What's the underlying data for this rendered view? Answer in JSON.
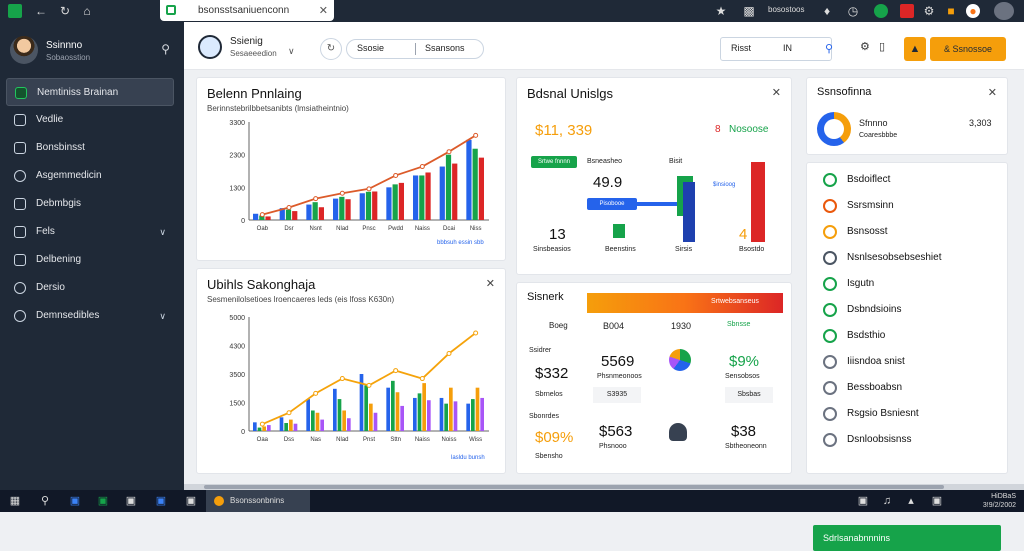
{
  "browser": {
    "url": "bsonsstsaniuenconn",
    "right_text": "bosostoos"
  },
  "sidebar": {
    "profile_name": "Ssinnno",
    "profile_sub": "Sobaosstion",
    "items": [
      {
        "label": "Nemtiniss Brainan",
        "active": true
      },
      {
        "label": "Vedlie"
      },
      {
        "label": "Bonsbinsst"
      },
      {
        "label": "Asgemmedicin"
      },
      {
        "label": "Debmbgis"
      },
      {
        "label": "Fels",
        "chevron": true
      },
      {
        "label": "Delbening"
      },
      {
        "label": "Dersio"
      },
      {
        "label": "Demnsedibles",
        "chevron": true
      }
    ]
  },
  "header": {
    "title": "Ssienig",
    "subtitle": "Sesaeeedion",
    "search_a": "Ssosie",
    "search_b": "Ssansons",
    "filter_label": "Risst",
    "filter_extra": "IN",
    "cta": "& Ssnossoe"
  },
  "card1": {
    "title": "Belenn Pnnlaing",
    "subtitle": "Berinnstebrilbbetsanibts (lmsiatheintnio)",
    "legend": "bbbsuh essin sbb",
    "chart_data": {
      "type": "bar",
      "categories": [
        "Oab",
        "Dsr",
        "Nsnt",
        "Nlad",
        "Pnsc",
        "Pwdd",
        "Naiss",
        "Dcai",
        "Niss"
      ],
      "series": [
        {
          "color": "#2563eb",
          "values": [
            210,
            400,
            520,
            720,
            900,
            1100,
            1500,
            1800,
            2700
          ]
        },
        {
          "color": "#16a34a",
          "values": [
            150,
            350,
            600,
            780,
            950,
            1200,
            1500,
            2200,
            2400
          ]
        },
        {
          "color": "#dc2626",
          "values": [
            120,
            300,
            430,
            700,
            960,
            1250,
            1600,
            1900,
            2100
          ]
        }
      ],
      "line": [
        180,
        420,
        720,
        900,
        1050,
        1500,
        1800,
        2300,
        2850
      ],
      "yticks": [
        "0",
        "1300",
        "2300",
        "3300"
      ],
      "ylim": [
        0,
        3300
      ]
    }
  },
  "card2": {
    "title": "Ubihls Sakonghaja",
    "subtitle": "Sesmenilolsetioes lroencaeres leds (eis lfoss K630n)",
    "legend": "lasldu bunsh",
    "chart_data": {
      "type": "bar",
      "categories": [
        "Oaa",
        "Dss",
        "Nas",
        "Nlad",
        "Pnst",
        "Sttn",
        "Naiss",
        "Noiss",
        "Wiss"
      ],
      "series": [
        {
          "color": "#2563eb",
          "values": [
            380,
            600,
            1400,
            1850,
            2500,
            1900,
            1450,
            1450,
            1200
          ]
        },
        {
          "color": "#16a34a",
          "values": [
            150,
            350,
            900,
            1400,
            2000,
            2200,
            1650,
            1200,
            1400
          ]
        },
        {
          "color": "#f59e0b",
          "values": [
            200,
            500,
            800,
            900,
            1200,
            1700,
            2100,
            1900,
            1900
          ]
        },
        {
          "color": "#a855f7",
          "values": [
            260,
            320,
            500,
            560,
            800,
            1100,
            1350,
            1300,
            1450
          ]
        }
      ],
      "line": [
        300,
        800,
        1650,
        2300,
        2000,
        2650,
        2300,
        3400,
        4300
      ],
      "yticks": [
        "0",
        "1500",
        "3500",
        "4300",
        "5000"
      ],
      "ylim": [
        0,
        5000
      ]
    }
  },
  "card3": {
    "title": "Bdsnal Unislgs",
    "big_left": "$11, 339",
    "big_right_prefix": "8",
    "big_right": "Nosoose",
    "badge": "Srtwe fnnnn",
    "sub_label_a": "Bsneasheo",
    "sub_label_b": "Bisit",
    "value_mid": "49.9",
    "pill_a": "Pisobooe",
    "pill_b": "$insioog",
    "count_left": "13",
    "count_right": "4",
    "foot_a": "Sinsbeasios",
    "foot_b": "Beenstins",
    "foot_c": "Sirsis",
    "foot_d": "Bsostdo"
  },
  "card4": {
    "title": "Sisnerk",
    "header_bar": "Srtwebsanseus",
    "cols": [
      "Boeg",
      "B004",
      "1930",
      "Sbnsse"
    ],
    "r1_label": "Ssidrer",
    "r1_left": "$332",
    "r1_mid": "5569",
    "r1_mid_sub": "Phsnmeonoos",
    "r1_right": "$9%",
    "r1_right_sub": "Sensobsos",
    "r1_left_sub": "Sbrnelos",
    "r2_label": "Sbonrdes",
    "r2_left": "$09%",
    "r2_mid": "$563",
    "r2_mid_sub": "Phsnooo",
    "r2_right": "$38",
    "r2_right_sub": "Sbtheoneonn",
    "r2_left_sub": "Sbensho",
    "row_pills": [
      "S3935",
      "Sbsbas"
    ]
  },
  "card5": {
    "title": "Ssnsofinna",
    "item": "Sfnnno",
    "item_sub": "Coaresbbbe",
    "value": "3,303"
  },
  "checklist": {
    "items": [
      {
        "label": "Bsdoiflect",
        "color": "#16a34a"
      },
      {
        "label": "Ssrsmsinn",
        "color": "#ea580c"
      },
      {
        "label": "Bsnsosst",
        "color": "#f59e0b"
      },
      {
        "label": "Nsnlsesobsebseshiet",
        "color": "#4b5563"
      },
      {
        "label": "Isgutn",
        "color": "#16a34a"
      },
      {
        "label": "Dsbndsioins",
        "color": "#16a34a"
      },
      {
        "label": "Bsdsthio",
        "color": "#16a34a"
      },
      {
        "label": "Iiisndoa snist",
        "color": "#6b7280"
      },
      {
        "label": "Bessboabsn",
        "color": "#6b7280"
      },
      {
        "label": "Rsgsio Bsniesnt",
        "color": "#6b7280"
      },
      {
        "label": "Dsnloobsisnss",
        "color": "#6b7280"
      }
    ],
    "button": "Sdrlsanabnnnins"
  },
  "taskbar": {
    "app": "Bsonssonbnins",
    "clock_a": "HiDBaS",
    "clock_b": "3!9/2/2002"
  }
}
